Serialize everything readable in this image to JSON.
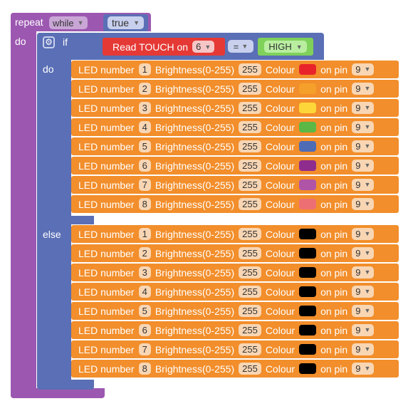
{
  "repeat_block": {
    "repeat_label": "repeat",
    "mode_value": "while",
    "do_label": "do",
    "condition_value": "true"
  },
  "if_block": {
    "if_label": "if",
    "do_label": "do",
    "else_label": "else",
    "condition": {
      "read_label": "Read TOUCH on",
      "pin_value": "6",
      "operator": "=",
      "compare_value": "HIGH"
    }
  },
  "led_labels": {
    "led_number": "LED number",
    "brightness": "Brightness(0-255)",
    "colour": "Colour",
    "on_pin": "on pin"
  },
  "do_rows": [
    {
      "number": "1",
      "brightness": "255",
      "colour": "#E8242A",
      "pin": "9"
    },
    {
      "number": "2",
      "brightness": "255",
      "colour": "#F5A02A",
      "pin": "9"
    },
    {
      "number": "3",
      "brightness": "255",
      "colour": "#FDD639",
      "pin": "9"
    },
    {
      "number": "4",
      "brightness": "255",
      "colour": "#5BB846",
      "pin": "9"
    },
    {
      "number": "5",
      "brightness": "255",
      "colour": "#4E6BB6",
      "pin": "9"
    },
    {
      "number": "6",
      "brightness": "255",
      "colour": "#8E2D8D",
      "pin": "9"
    },
    {
      "number": "7",
      "brightness": "255",
      "colour": "#B054A8",
      "pin": "9"
    },
    {
      "number": "8",
      "brightness": "255",
      "colour": "#EE6F73",
      "pin": "9"
    }
  ],
  "else_rows": [
    {
      "number": "1",
      "brightness": "255",
      "colour": "#000000",
      "pin": "9"
    },
    {
      "number": "2",
      "brightness": "255",
      "colour": "#000000",
      "pin": "9"
    },
    {
      "number": "3",
      "brightness": "255",
      "colour": "#000000",
      "pin": "9"
    },
    {
      "number": "4",
      "brightness": "255",
      "colour": "#000000",
      "pin": "9"
    },
    {
      "number": "5",
      "brightness": "255",
      "colour": "#000000",
      "pin": "9"
    },
    {
      "number": "6",
      "brightness": "255",
      "colour": "#000000",
      "pin": "9"
    },
    {
      "number": "7",
      "brightness": "255",
      "colour": "#000000",
      "pin": "9"
    },
    {
      "number": "8",
      "brightness": "255",
      "colour": "#000000",
      "pin": "9"
    }
  ],
  "colors": {
    "repeat_block": "#9C58B1",
    "logic_block": "#5A6FB5",
    "led_block": "#F28E2B",
    "touch_block": "#E53935",
    "high_block": "#7FD15A"
  },
  "icons": {
    "mutator": "gear-icon",
    "dropdown": "dropdown-arrow-icon"
  }
}
